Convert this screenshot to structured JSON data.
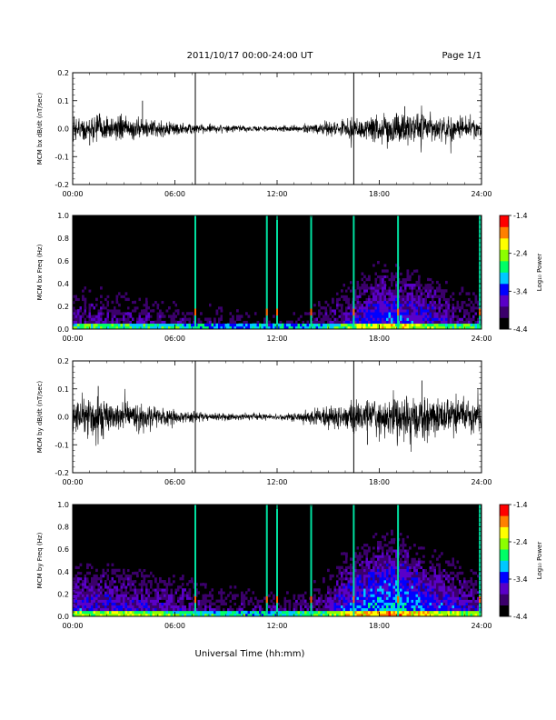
{
  "header": {
    "title": "2011/10/17  00:00-24:00 UT",
    "page": "Page 1/1"
  },
  "xaxis": {
    "label": "Universal Time (hh:mm)",
    "range_hours": [
      0,
      24
    ],
    "ticks": [
      "00:00",
      "06:00",
      "12:00",
      "18:00",
      "24:00"
    ]
  },
  "colorbar": {
    "label": "Log₁₀ Power",
    "ticks": [
      "-1.4",
      "-2.4",
      "-3.4",
      "-4.4"
    ],
    "range": [
      -4.4,
      -1.4
    ],
    "colors": [
      "#000000",
      "#3b006b",
      "#5a00c8",
      "#0000ff",
      "#00c8ff",
      "#00ff66",
      "#8cff00",
      "#ffff00",
      "#ff8000",
      "#ff0000"
    ]
  },
  "chart_data": [
    {
      "type": "line",
      "id": "bx_dbdt",
      "ylabel": "MCM bx dB/dt (nT/sec)",
      "ylim": [
        -0.2,
        0.2
      ],
      "yticks": [
        "0.2",
        "0.1",
        "0.0",
        "-0.1",
        "-0.2"
      ],
      "vlines_hours": [
        7.2,
        16.5
      ],
      "amplitude_envelope": {
        "x_hours": [
          0,
          2,
          4,
          5,
          6,
          8,
          10,
          12,
          13,
          14,
          15,
          16,
          17,
          18,
          19,
          20,
          21,
          22,
          23,
          24
        ],
        "amplitude": [
          0.04,
          0.04,
          0.03,
          0.025,
          0.02,
          0.013,
          0.01,
          0.008,
          0.01,
          0.015,
          0.022,
          0.03,
          0.035,
          0.045,
          0.05,
          0.045,
          0.04,
          0.035,
          0.03,
          0.03
        ]
      },
      "spikes": [
        {
          "x_hours": 4.1,
          "y": 0.1
        },
        {
          "x_hours": 1.0,
          "y": -0.06
        },
        {
          "x_hours": 19.5,
          "y": 0.08
        }
      ]
    },
    {
      "type": "heatmap",
      "id": "bx_spectrogram",
      "ylabel": "MCM bx Freq (Hz)",
      "ylim": [
        0.0,
        1.0
      ],
      "yticks": [
        "1.0",
        "0.8",
        "0.6",
        "0.4",
        "0.2",
        "0.0"
      ],
      "z_label": "Log₁₀ Power",
      "z_range": [
        -4.4,
        -1.4
      ],
      "broadband_lines_hours": [
        7.2,
        11.4,
        12.0,
        14.0,
        16.5,
        19.1,
        23.9
      ],
      "activity_envelope": {
        "x_hours": [
          0,
          2,
          4,
          6,
          8,
          10,
          12,
          14,
          15,
          16,
          17,
          18,
          19,
          20,
          21,
          22,
          23,
          24
        ],
        "max_freq_hz": [
          0.35,
          0.35,
          0.3,
          0.25,
          0.2,
          0.15,
          0.15,
          0.2,
          0.3,
          0.4,
          0.5,
          0.6,
          0.6,
          0.55,
          0.5,
          0.4,
          0.35,
          0.3
        ]
      }
    },
    {
      "type": "line",
      "id": "by_dbdt",
      "ylabel": "MCM by dB/dt (nT/sec)",
      "ylim": [
        -0.2,
        0.2
      ],
      "yticks": [
        "0.2",
        "0.1",
        "0.0",
        "-0.1",
        "-0.2"
      ],
      "vlines_hours": [
        7.2,
        16.5
      ],
      "amplitude_envelope": {
        "x_hours": [
          0,
          1,
          2,
          3,
          4,
          5,
          6,
          8,
          10,
          12,
          13,
          14,
          15,
          16,
          17,
          18,
          19,
          20,
          21,
          22,
          23,
          24
        ],
        "amplitude": [
          0.04,
          0.06,
          0.05,
          0.045,
          0.04,
          0.035,
          0.02,
          0.013,
          0.01,
          0.01,
          0.012,
          0.02,
          0.03,
          0.045,
          0.05,
          0.06,
          0.07,
          0.065,
          0.06,
          0.055,
          0.05,
          0.05
        ]
      },
      "spikes": [
        {
          "x_hours": 1.5,
          "y": 0.11
        },
        {
          "x_hours": 20.5,
          "y": 0.13
        },
        {
          "x_hours": 17.3,
          "y": -0.1
        },
        {
          "x_hours": 1.8,
          "y": -0.08
        }
      ]
    },
    {
      "type": "heatmap",
      "id": "by_spectrogram",
      "ylabel": "MCM by Freq (Hz)",
      "ylim": [
        0.0,
        1.0
      ],
      "yticks": [
        "1.0",
        "0.8",
        "0.6",
        "0.4",
        "0.2",
        "0.0"
      ],
      "z_label": "Log₁₀ Power",
      "z_range": [
        -4.4,
        -1.4
      ],
      "broadband_lines_hours": [
        7.2,
        11.4,
        12.0,
        14.0,
        16.5,
        19.1,
        23.9
      ],
      "activity_envelope": {
        "x_hours": [
          0,
          2,
          4,
          6,
          8,
          10,
          12,
          14,
          15,
          16,
          17,
          18,
          19,
          20,
          21,
          22,
          23,
          24
        ],
        "max_freq_hz": [
          0.5,
          0.5,
          0.45,
          0.4,
          0.3,
          0.25,
          0.25,
          0.3,
          0.4,
          0.6,
          0.7,
          0.75,
          0.8,
          0.7,
          0.6,
          0.55,
          0.45,
          0.4
        ]
      }
    }
  ]
}
